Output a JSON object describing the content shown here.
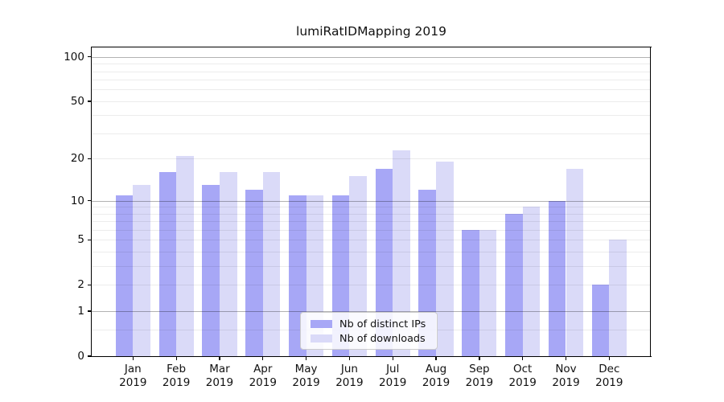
{
  "figure": {
    "background": "#ffffff"
  },
  "chart_data": {
    "type": "bar",
    "title": "lumiRatIDMapping 2019",
    "categories": [
      "Jan",
      "Feb",
      "Mar",
      "Apr",
      "May",
      "Jun",
      "Jul",
      "Aug",
      "Sep",
      "Oct",
      "Nov",
      "Dec"
    ],
    "category_year": "2019",
    "series": [
      {
        "name": "Nb of distinct IPs",
        "color": "#a7a7f6",
        "values": [
          11,
          16,
          13,
          12,
          11,
          11,
          17,
          12,
          6,
          8,
          10,
          2
        ]
      },
      {
        "name": "Nb of downloads",
        "color": "#dadaf8",
        "values": [
          13,
          21,
          16,
          16,
          11,
          15,
          23,
          19,
          6,
          9,
          17,
          5
        ]
      }
    ],
    "y_axis": {
      "scale": "log1p",
      "max": 100,
      "ticks": [
        0,
        1,
        2,
        5,
        10,
        20,
        50,
        100
      ],
      "major_gridlines": [
        1,
        10,
        100
      ],
      "minor_gridlines": [
        0.5,
        2,
        3,
        4,
        5,
        6,
        7,
        8,
        9,
        20,
        30,
        40,
        50,
        60,
        70,
        80,
        90
      ]
    },
    "x_axis": {
      "label_lines": 2
    },
    "legend": {
      "position": "lower center"
    },
    "grid": true
  }
}
